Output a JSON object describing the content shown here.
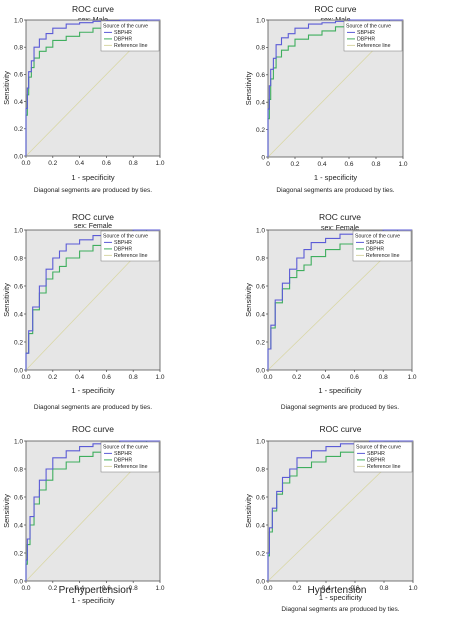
{
  "figure": {
    "caption_left": "Prehypertension",
    "caption_right": "Hypertension"
  },
  "colors": {
    "plot_bg": "#e6e6e6",
    "sbphr": "#5b5bd6",
    "dbphr": "#3fae5e",
    "reference": "#d9d7a6"
  },
  "chart_data": [
    {
      "id": "top-left",
      "type": "line",
      "title": "ROC curve",
      "subtitle": "sex: Male",
      "xlabel": "1 - specificity",
      "ylabel": "Sensitivity",
      "note": "Diagonal segments are produced by ties.",
      "xlim": [
        0,
        1
      ],
      "ylim": [
        0,
        1
      ],
      "xticks": [
        "0.0",
        "0.2",
        "0.4",
        "0.6",
        "0.8",
        "1.0"
      ],
      "yticks": [
        "0.0",
        "0.2",
        "0.4",
        "0.6",
        "0.8",
        "1.0"
      ],
      "legend_title": "Source of the curve",
      "legend_position": "top-right",
      "series": [
        {
          "name": "SBPHR",
          "x": [
            0,
            0.01,
            0.02,
            0.04,
            0.06,
            0.1,
            0.15,
            0.2,
            0.3,
            0.4,
            0.5,
            0.6,
            0.7,
            0.8,
            0.9,
            1.0
          ],
          "y": [
            0,
            0.35,
            0.5,
            0.62,
            0.7,
            0.8,
            0.86,
            0.9,
            0.94,
            0.97,
            0.98,
            0.99,
            0.995,
            1.0,
            1.0,
            1.0
          ]
        },
        {
          "name": "DBPHR",
          "x": [
            0,
            0.01,
            0.02,
            0.04,
            0.06,
            0.1,
            0.15,
            0.2,
            0.3,
            0.4,
            0.5,
            0.6,
            0.7,
            0.8,
            0.9,
            1.0
          ],
          "y": [
            0,
            0.3,
            0.45,
            0.58,
            0.65,
            0.72,
            0.77,
            0.8,
            0.85,
            0.88,
            0.91,
            0.94,
            0.96,
            0.98,
            0.99,
            1.0
          ]
        },
        {
          "name": "Reference line",
          "x": [
            0,
            1
          ],
          "y": [
            0,
            1
          ]
        }
      ]
    },
    {
      "id": "top-right",
      "type": "line",
      "title": "ROC curve",
      "subtitle": "sex: Male",
      "xlabel": "1 - specificity",
      "ylabel": "Sensitivity",
      "note": "Diagonal segments are produced by ties.",
      "xlim": [
        0,
        1
      ],
      "ylim": [
        0,
        1
      ],
      "xticks": [
        "0",
        "0.2",
        "0.4",
        "0.6",
        "0.8",
        "1.0"
      ],
      "yticks": [
        "0",
        "0.2",
        "0.4",
        "0.6",
        "0.8",
        "1.0"
      ],
      "legend_title": "Source of the curve",
      "legend_position": "top-right",
      "series": [
        {
          "name": "SBPHR",
          "x": [
            0,
            0.01,
            0.02,
            0.04,
            0.06,
            0.1,
            0.15,
            0.2,
            0.3,
            0.4,
            0.5,
            0.6,
            0.7,
            0.8,
            0.9,
            1.0
          ],
          "y": [
            0,
            0.35,
            0.52,
            0.64,
            0.72,
            0.82,
            0.87,
            0.9,
            0.94,
            0.97,
            0.98,
            0.99,
            1.0,
            1.0,
            1.0,
            1.0
          ]
        },
        {
          "name": "DBPHR",
          "x": [
            0,
            0.01,
            0.02,
            0.04,
            0.06,
            0.1,
            0.15,
            0.2,
            0.3,
            0.4,
            0.5,
            0.6,
            0.7,
            0.8,
            0.9,
            1.0
          ],
          "y": [
            0,
            0.28,
            0.42,
            0.57,
            0.65,
            0.73,
            0.78,
            0.81,
            0.86,
            0.89,
            0.92,
            0.95,
            0.97,
            0.98,
            0.99,
            1.0
          ]
        },
        {
          "name": "Reference line",
          "x": [
            0,
            1
          ],
          "y": [
            0,
            1
          ]
        }
      ]
    },
    {
      "id": "middle-left",
      "type": "line",
      "title": "ROC curve",
      "subtitle": "sex: Female",
      "xlabel": "1 - specificity",
      "ylabel": "Sensitivity",
      "note": "Diagonal segments are produced by ties.",
      "xlim": [
        0,
        1
      ],
      "ylim": [
        0,
        1
      ],
      "xticks": [
        "0.0",
        "0.2",
        "0.4",
        "0.6",
        "0.8",
        "1.0"
      ],
      "yticks": [
        "0.0",
        "0.2",
        "0.4",
        "0.6",
        "0.8",
        "1.0"
      ],
      "legend_title": "Source of the curve",
      "legend_position": "top-right",
      "series": [
        {
          "name": "SBPHR",
          "x": [
            0,
            0.02,
            0.05,
            0.1,
            0.15,
            0.2,
            0.25,
            0.3,
            0.4,
            0.5,
            0.6,
            0.7,
            0.8,
            0.9,
            1.0
          ],
          "y": [
            0,
            0.12,
            0.28,
            0.45,
            0.6,
            0.72,
            0.8,
            0.85,
            0.9,
            0.93,
            0.96,
            0.97,
            0.99,
            1.0,
            1.0
          ]
        },
        {
          "name": "DBPHR",
          "x": [
            0,
            0.02,
            0.05,
            0.1,
            0.15,
            0.2,
            0.25,
            0.3,
            0.4,
            0.5,
            0.6,
            0.7,
            0.8,
            0.9,
            1.0
          ],
          "y": [
            0,
            0.12,
            0.26,
            0.43,
            0.55,
            0.65,
            0.7,
            0.74,
            0.8,
            0.85,
            0.89,
            0.93,
            0.96,
            0.99,
            1.0
          ]
        },
        {
          "name": "Reference line",
          "x": [
            0,
            1
          ],
          "y": [
            0,
            1
          ]
        }
      ]
    },
    {
      "id": "middle-right",
      "type": "line",
      "title": "ROC curve",
      "subtitle": "sex: Female",
      "xlabel": "1 - specificity",
      "ylabel": "Sensitivity",
      "note": "Diagonal segments are produced by ties.",
      "xlim": [
        0,
        1
      ],
      "ylim": [
        0,
        1
      ],
      "xticks": [
        "0.0",
        "0.2",
        "0.4",
        "0.6",
        "0.8",
        "1.0"
      ],
      "yticks": [
        "0.0",
        "0.2",
        "0.4",
        "0.6",
        "0.8",
        "1.0"
      ],
      "legend_title": "Source of the curve",
      "legend_position": "top-right",
      "series": [
        {
          "name": "SBPHR",
          "x": [
            0,
            0.02,
            0.05,
            0.1,
            0.15,
            0.2,
            0.25,
            0.3,
            0.4,
            0.5,
            0.6,
            0.7,
            0.8,
            0.9,
            1.0
          ],
          "y": [
            0,
            0.15,
            0.32,
            0.5,
            0.62,
            0.72,
            0.8,
            0.86,
            0.91,
            0.94,
            0.97,
            0.98,
            0.99,
            1.0,
            1.0
          ]
        },
        {
          "name": "DBPHR",
          "x": [
            0,
            0.02,
            0.05,
            0.1,
            0.15,
            0.2,
            0.25,
            0.3,
            0.4,
            0.5,
            0.6,
            0.7,
            0.8,
            0.9,
            1.0
          ],
          "y": [
            0,
            0.15,
            0.3,
            0.48,
            0.58,
            0.66,
            0.71,
            0.75,
            0.81,
            0.86,
            0.9,
            0.93,
            0.96,
            0.99,
            1.0
          ]
        },
        {
          "name": "Reference line",
          "x": [
            0,
            1
          ],
          "y": [
            0,
            1
          ]
        }
      ]
    },
    {
      "id": "bottom-left",
      "type": "line",
      "title": "ROC curve",
      "subtitle": "",
      "xlabel": "1 - specificity",
      "ylabel": "Sensitivity",
      "note": "",
      "xlim": [
        0,
        1
      ],
      "ylim": [
        0,
        1
      ],
      "xticks": [
        "0.0",
        "0.2",
        "0.4",
        "0.6",
        "0.8",
        "1.0"
      ],
      "yticks": [
        "0.0",
        "0.2",
        "0.4",
        "0.6",
        "0.8",
        "1.0"
      ],
      "legend_title": "Source of the curve",
      "legend_position": "top-right",
      "series": [
        {
          "name": "SBPHR",
          "x": [
            0,
            0.01,
            0.03,
            0.06,
            0.1,
            0.15,
            0.2,
            0.3,
            0.4,
            0.5,
            0.6,
            0.7,
            0.8,
            0.9,
            1.0
          ],
          "y": [
            0,
            0.15,
            0.3,
            0.46,
            0.6,
            0.72,
            0.8,
            0.88,
            0.93,
            0.96,
            0.98,
            0.99,
            1.0,
            1.0,
            1.0
          ]
        },
        {
          "name": "DBPHR",
          "x": [
            0,
            0.01,
            0.03,
            0.06,
            0.1,
            0.15,
            0.2,
            0.3,
            0.4,
            0.5,
            0.6,
            0.7,
            0.8,
            0.9,
            1.0
          ],
          "y": [
            0,
            0.12,
            0.26,
            0.4,
            0.55,
            0.65,
            0.72,
            0.8,
            0.85,
            0.89,
            0.92,
            0.95,
            0.97,
            0.99,
            1.0
          ]
        },
        {
          "name": "Reference line",
          "x": [
            0,
            1
          ],
          "y": [
            0,
            1
          ]
        }
      ]
    },
    {
      "id": "bottom-right",
      "type": "line",
      "title": "ROC curve",
      "subtitle": "",
      "xlabel": "1 - specificity",
      "ylabel": "Sensitivity",
      "note": "Diagonal segments are produced by ties.",
      "xlim": [
        0,
        1
      ],
      "ylim": [
        0,
        1
      ],
      "xticks": [
        "0.0",
        "0.2",
        "0.4",
        "0.6",
        "0.8",
        "1.0"
      ],
      "yticks": [
        "0.0",
        "0.2",
        "0.4",
        "0.6",
        "0.8",
        "1.0"
      ],
      "legend_title": "Source of the curve",
      "legend_position": "top-right",
      "series": [
        {
          "name": "SBPHR",
          "x": [
            0,
            0.01,
            0.03,
            0.06,
            0.1,
            0.15,
            0.2,
            0.3,
            0.4,
            0.5,
            0.6,
            0.7,
            0.8,
            0.9,
            1.0
          ],
          "y": [
            0,
            0.2,
            0.38,
            0.52,
            0.64,
            0.74,
            0.8,
            0.88,
            0.93,
            0.96,
            0.98,
            0.99,
            1.0,
            1.0,
            1.0
          ]
        },
        {
          "name": "DBPHR",
          "x": [
            0,
            0.01,
            0.03,
            0.06,
            0.1,
            0.15,
            0.2,
            0.3,
            0.4,
            0.5,
            0.6,
            0.7,
            0.8,
            0.9,
            1.0
          ],
          "y": [
            0,
            0.18,
            0.35,
            0.5,
            0.62,
            0.7,
            0.75,
            0.81,
            0.85,
            0.89,
            0.92,
            0.95,
            0.97,
            0.99,
            1.0
          ]
        },
        {
          "name": "Reference line",
          "x": [
            0,
            1
          ],
          "y": [
            0,
            1
          ]
        }
      ]
    }
  ]
}
